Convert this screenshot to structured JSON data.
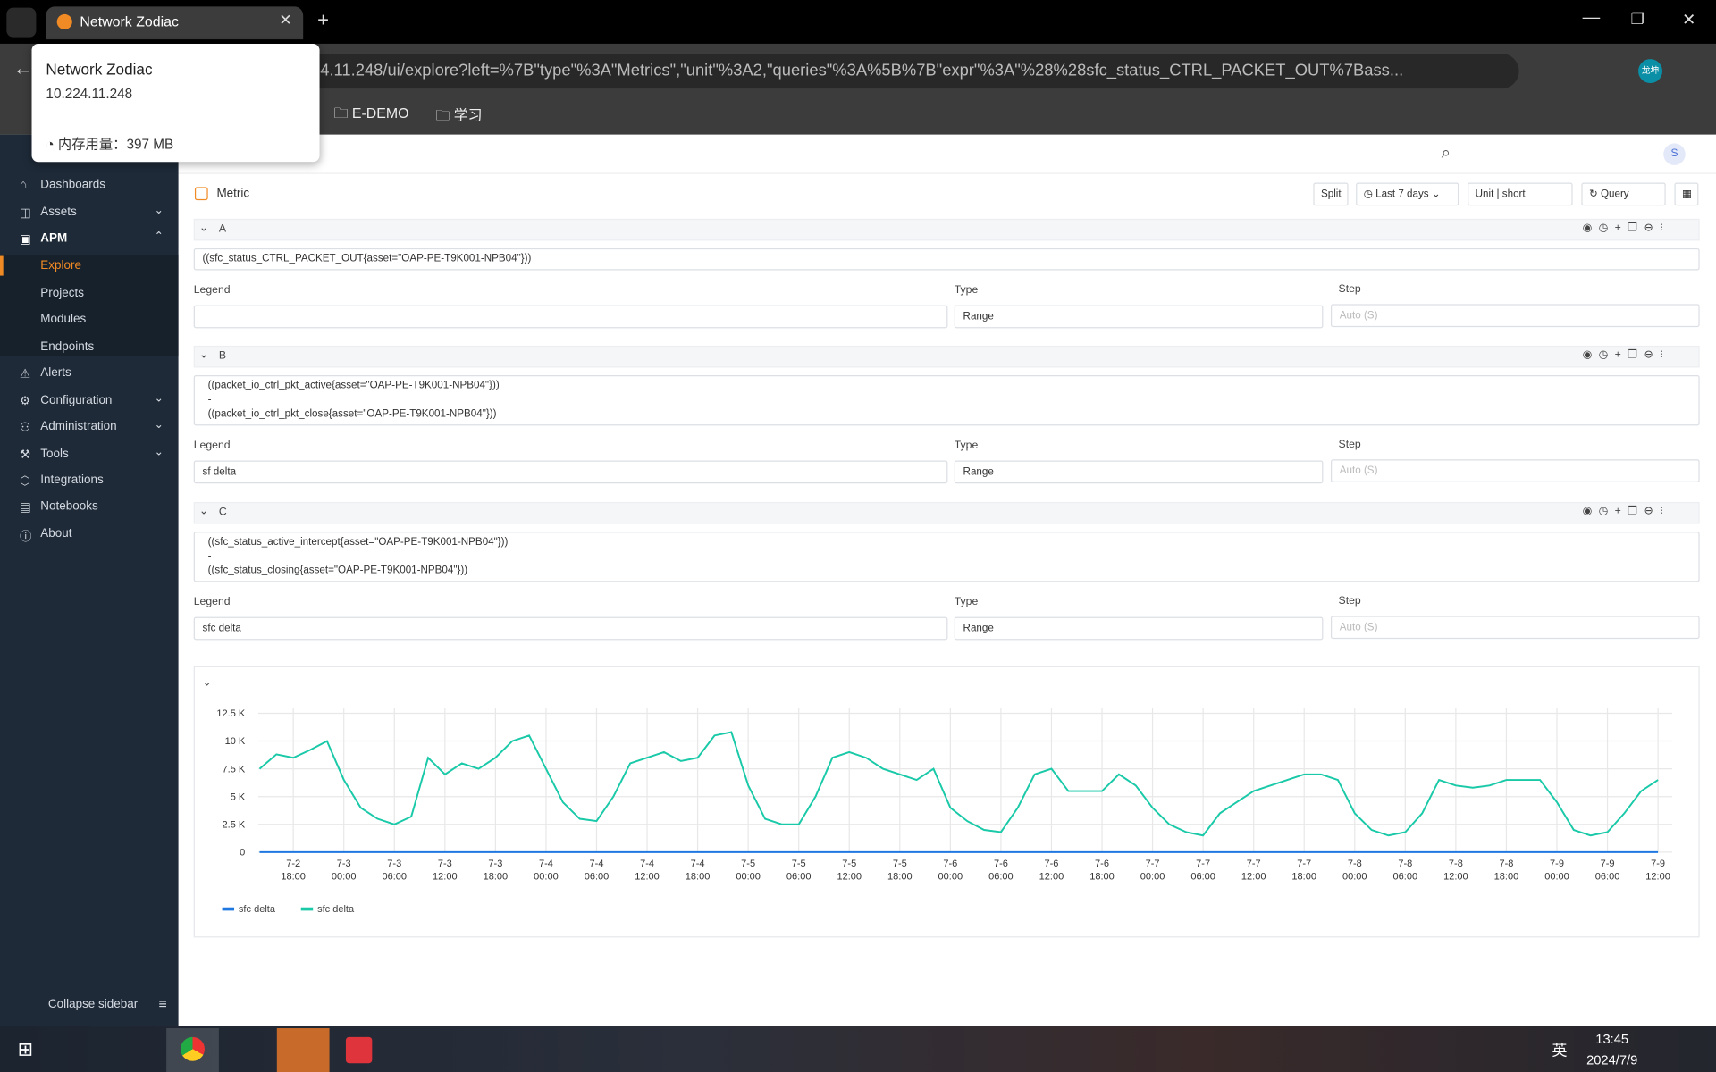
{
  "browser": {
    "tab_title": "Network Zodiac",
    "url": "https://10.224.11.248/ui/explore?left=%7B\"type\"%3A\"Metrics\",\"unit\"%3A2,\"queries\"%3A%5B%7B\"expr\"%3A\"%28%28sfc_status_CTRL_PACKET_OUT%7Bass...",
    "bookmarks": [
      "E-DEMO",
      "学习"
    ],
    "profile": "龙坤",
    "tooltip": {
      "title": "Network Zodiac",
      "host": "10.224.11.248",
      "memory": "内存用量：397 MB"
    }
  },
  "sidebar": {
    "items": [
      "Dashboards",
      "Assets",
      "APM",
      "Alerts",
      "Configuration",
      "Administration",
      "Tools",
      "Integrations",
      "Notebooks",
      "About"
    ],
    "apm_children": [
      "Explore",
      "Projects",
      "Modules",
      "Endpoints"
    ],
    "collapse": "Collapse sidebar"
  },
  "header": {
    "avatar": "S"
  },
  "toolbar": {
    "datasource": "Metric",
    "split": "Split",
    "time_range": "Last 7 days",
    "unit_label": "Unit",
    "unit": "short",
    "query": "Query"
  },
  "query_fields": {
    "legend": "Legend",
    "type": "Type",
    "step": "Step",
    "step_placeholder": "Auto (S)"
  },
  "queries": [
    {
      "ref": "A",
      "expr": [
        "((sfc_status_CTRL_PACKET_OUT{asset=\"OAP-PE-T9K001-NPB04\"}))"
      ],
      "type": "Range"
    },
    {
      "ref": "B",
      "expr": [
        "((packet_io_ctrl_pkt_active{asset=\"OAP-PE-T9K001-NPB04\"}))",
        "-",
        "((packet_io_ctrl_pkt_close{asset=\"OAP-PE-T9K001-NPB04\"}))"
      ],
      "legend": "sf delta",
      "type": "Range"
    },
    {
      "ref": "C",
      "expr": [
        "((sfc_status_active_intercept{asset=\"OAP-PE-T9K001-NPB04\"}))",
        "-",
        "((sfc_status_closing{asset=\"OAP-PE-T9K001-NPB04\"}))"
      ],
      "legend": "sfc delta",
      "type": "Range"
    }
  ],
  "chart_data": {
    "type": "line",
    "grid": true,
    "x": [
      "7-2 14:00",
      "7-2 16:00",
      "7-2 18:00",
      "7-2 20:00",
      "7-2 22:00",
      "7-3 00:00",
      "7-3 02:00",
      "7-3 04:00",
      "7-3 06:00",
      "7-3 08:00",
      "7-3 10:00",
      "7-3 12:00",
      "7-3 14:00",
      "7-3 16:00",
      "7-3 18:00",
      "7-3 20:00",
      "7-3 22:00",
      "7-4 00:00",
      "7-4 02:00",
      "7-4 04:00",
      "7-4 06:00",
      "7-4 08:00",
      "7-4 10:00",
      "7-4 12:00",
      "7-4 14:00",
      "7-4 16:00",
      "7-4 18:00",
      "7-4 20:00",
      "7-4 22:00",
      "7-5 00:00",
      "7-5 02:00",
      "7-5 04:00",
      "7-5 06:00",
      "7-5 08:00",
      "7-5 10:00",
      "7-5 12:00",
      "7-5 14:00",
      "7-5 16:00",
      "7-5 18:00",
      "7-5 20:00",
      "7-5 22:00",
      "7-6 00:00",
      "7-6 02:00",
      "7-6 04:00",
      "7-6 06:00",
      "7-6 08:00",
      "7-6 10:00",
      "7-6 12:00",
      "7-6 14:00",
      "7-6 16:00",
      "7-6 18:00",
      "7-6 20:00",
      "7-6 22:00",
      "7-7 00:00",
      "7-7 02:00",
      "7-7 04:00",
      "7-7 06:00",
      "7-7 08:00",
      "7-7 10:00",
      "7-7 12:00",
      "7-7 14:00",
      "7-7 16:00",
      "7-7 18:00",
      "7-7 20:00",
      "7-7 22:00",
      "7-8 00:00",
      "7-8 02:00",
      "7-8 04:00",
      "7-8 06:00",
      "7-8 08:00",
      "7-8 10:00",
      "7-8 12:00",
      "7-8 14:00",
      "7-8 16:00",
      "7-8 18:00",
      "7-8 20:00",
      "7-8 22:00",
      "7-9 00:00",
      "7-9 02:00",
      "7-9 04:00",
      "7-9 06:00",
      "7-9 08:00",
      "7-9 10:00",
      "7-9 12:00"
    ],
    "series": [
      {
        "name": "sfc delta",
        "color": "#1f78e0",
        "values": [
          0,
          0,
          0,
          0,
          0,
          0,
          0,
          0,
          0,
          0,
          0,
          0,
          0,
          0,
          0,
          0,
          0,
          0,
          0,
          0,
          0,
          0,
          0,
          0,
          0,
          0,
          0,
          0,
          0,
          0,
          0,
          0,
          0,
          0,
          0,
          0,
          0,
          0,
          0,
          0,
          0,
          0,
          0,
          0,
          0,
          0,
          0,
          0,
          0,
          0,
          0,
          0,
          0,
          0,
          0,
          0,
          0,
          0,
          0,
          0,
          0,
          0,
          0,
          0,
          0,
          0,
          0,
          0,
          0,
          0,
          0,
          0,
          0,
          0,
          0,
          0,
          0,
          0,
          0,
          0,
          0,
          0,
          0,
          0
        ]
      },
      {
        "name": "sfc delta",
        "color": "#19c9a8",
        "values": [
          7500,
          8800,
          8500,
          9200,
          10000,
          6500,
          4000,
          3000,
          2500,
          3200,
          8500,
          7000,
          8000,
          7500,
          8500,
          10000,
          10500,
          7500,
          4500,
          3000,
          2800,
          5000,
          8000,
          8500,
          9000,
          8200,
          8500,
          10500,
          10800,
          6000,
          3000,
          2500,
          2500,
          5000,
          8500,
          9000,
          8500,
          7500,
          7000,
          6500,
          7500,
          4000,
          2800,
          2000,
          1800,
          4000,
          7000,
          7500,
          5500,
          5500,
          5500,
          7000,
          6000,
          4000,
          2500,
          1800,
          1500,
          3500,
          4500,
          5500,
          6000,
          6500,
          7000,
          7000,
          6500,
          3500,
          2000,
          1500,
          1800,
          3500,
          6500,
          6000,
          5800,
          6000,
          6500,
          6500,
          6500,
          4500,
          2000,
          1500,
          1800,
          3500,
          5500,
          6500
        ]
      }
    ],
    "xticks": [
      "7-2 18:00",
      "7-3 00:00",
      "7-3 06:00",
      "7-3 12:00",
      "7-3 18:00",
      "7-4 00:00",
      "7-4 06:00",
      "7-4 12:00",
      "7-4 18:00",
      "7-5 00:00",
      "7-5 06:00",
      "7-5 12:00",
      "7-5 18:00",
      "7-6 00:00",
      "7-6 06:00",
      "7-6 12:00",
      "7-6 18:00",
      "7-7 00:00",
      "7-7 06:00",
      "7-7 12:00",
      "7-7 18:00",
      "7-8 00:00",
      "7-8 06:00",
      "7-8 12:00",
      "7-8 18:00",
      "7-9 00:00",
      "7-9 06:00",
      "7-9 12:00"
    ],
    "ylim": [
      0,
      13000
    ],
    "yticks": [
      0,
      {
        "value": 2500,
        "label": "2.5 K"
      },
      {
        "value": 5000,
        "label": "5 K"
      },
      {
        "value": 7500,
        "label": "7.5 K"
      },
      {
        "value": 10000,
        "label": "10 K"
      },
      {
        "value": 12500,
        "label": "12.5 K"
      }
    ]
  },
  "taskbar": {
    "ime": "英",
    "time": "13:45",
    "date": "2024/7/9"
  }
}
